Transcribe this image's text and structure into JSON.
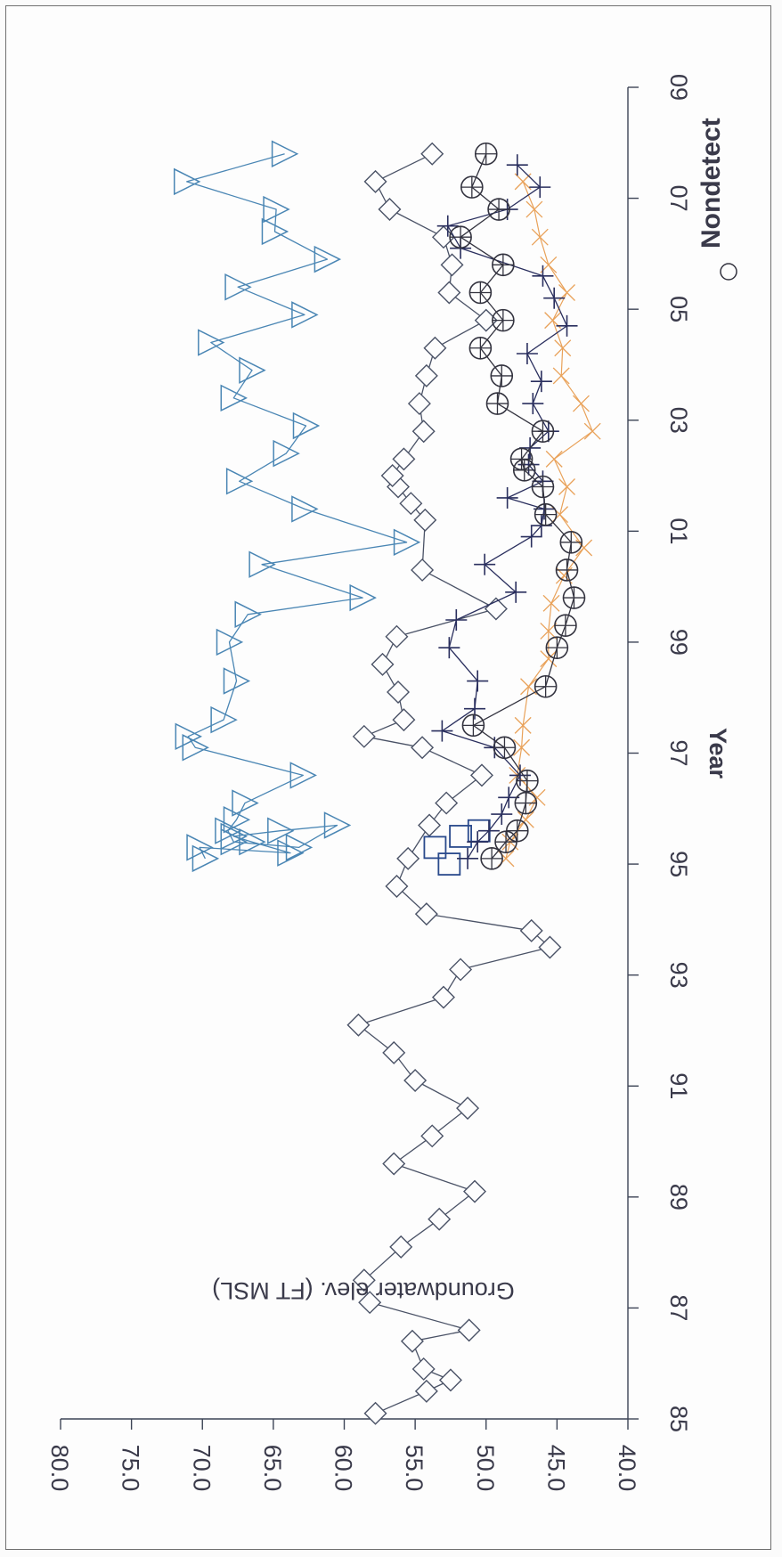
{
  "chart_data": {
    "type": "scatter",
    "orientation": "rotated-90-clockwise",
    "xlabel": "Year",
    "ylabel": "Groundwater elev. (FT MSL)",
    "xlim": [
      85,
      109
    ],
    "ylim": [
      40,
      80
    ],
    "x_tick_labels": [
      "85",
      "87",
      "89",
      "91",
      "93",
      "95",
      "97",
      "99",
      "01",
      "03",
      "05",
      "07",
      "09"
    ],
    "y_tick_labels": [
      "40.0",
      "45.0",
      "50.0",
      "55.0",
      "60.0",
      "65.0",
      "70.0",
      "75.0",
      "80.0"
    ],
    "legend": [
      {
        "label": "Nondetect",
        "marker": "circle"
      }
    ],
    "series": [
      {
        "marker": "diamond",
        "color": "#4a5266",
        "x": [
          85.1,
          85.5,
          85.7,
          85.9,
          86.4,
          86.6,
          87.1,
          87.5,
          88.1,
          88.6,
          89.1,
          89.6,
          90.1,
          90.6,
          91.1,
          91.6,
          92.1,
          92.6,
          93.1,
          93.5,
          93.8,
          94.1,
          94.6,
          95.1,
          95.7,
          96.1,
          96.6,
          97.1,
          97.3,
          97.6,
          98.1,
          98.6,
          99.1,
          99.6,
          100.3,
          101.2,
          101.5,
          101.8,
          102.0,
          102.3,
          102.8,
          103.3,
          103.8,
          104.3,
          104.8,
          105.3,
          105.8,
          106.3,
          106.8,
          107.3,
          107.8
        ],
        "y": [
          57.8,
          54.2,
          52.5,
          54.4,
          55.2,
          51.2,
          58.2,
          58.6,
          56.0,
          53.3,
          50.8,
          56.5,
          53.8,
          51.3,
          55.0,
          56.5,
          59.0,
          53.0,
          51.8,
          45.5,
          46.8,
          54.2,
          56.3,
          55.5,
          54.0,
          52.8,
          50.3,
          54.5,
          58.6,
          55.8,
          56.2,
          57.3,
          56.3,
          49.3,
          54.5,
          54.3,
          55.3,
          56.2,
          56.6,
          55.8,
          54.4,
          54.7,
          54.2,
          53.6,
          50.0,
          52.6,
          52.4,
          53.0,
          56.8,
          57.8,
          53.8
        ]
      },
      {
        "marker": "triangle",
        "color": "#4a86b4",
        "x": [
          95.1,
          95.3,
          95.2,
          95.4,
          95.5,
          95.6,
          95.7,
          95.3,
          95.4,
          95.6,
          95.8,
          96.1,
          96.6,
          97.1,
          97.3,
          97.6,
          98.3,
          99.0,
          99.5,
          99.8,
          100.4,
          100.8,
          101.4,
          101.9,
          102.4,
          102.9,
          103.4,
          103.9,
          104.4,
          104.9,
          105.4,
          105.9,
          106.4,
          106.8,
          107.3,
          107.8
        ],
        "y": [
          69.8,
          70.2,
          63.8,
          66.5,
          67.8,
          64.5,
          60.5,
          63.2,
          67.8,
          68.2,
          67.6,
          67.0,
          62.9,
          70.5,
          71.0,
          68.5,
          67.6,
          68.1,
          66.8,
          58.7,
          65.8,
          55.6,
          62.8,
          67.4,
          64.1,
          62.7,
          67.8,
          66.5,
          69.4,
          62.8,
          67.5,
          61.2,
          64.9,
          64.8,
          71.1,
          64.2
        ]
      },
      {
        "marker": "square",
        "color": "#2a4a8c",
        "x": [
          95.0,
          95.3,
          95.5,
          95.6
        ],
        "y": [
          52.6,
          53.6,
          51.8,
          50.5
        ]
      },
      {
        "marker": "plus",
        "color": "#2a2f5e",
        "x": [
          95.1,
          95.4,
          95.6,
          95.9,
          96.2,
          96.6,
          97.1,
          97.4,
          97.8,
          98.3,
          98.9,
          99.4,
          99.9,
          100.4,
          100.9,
          101.1,
          101.4,
          101.6,
          101.9,
          102.2,
          102.5,
          102.8,
          103.3,
          103.7,
          104.2,
          104.7,
          105.2,
          105.6,
          106.1,
          106.5,
          106.8,
          107.2,
          107.6
        ],
        "y": [
          51.3,
          50.6,
          49.8,
          48.9,
          48.4,
          47.6,
          49.4,
          53.1,
          50.8,
          50.6,
          52.6,
          52.1,
          47.9,
          50.1,
          46.8,
          46.1,
          45.9,
          48.5,
          46.0,
          47.0,
          46.9,
          45.6,
          46.7,
          46.1,
          47.1,
          44.3,
          45.2,
          46.0,
          51.8,
          52.7,
          48.5,
          46.2,
          47.8
        ]
      },
      {
        "marker": "x",
        "color": "#e9a25a",
        "x": [
          95.1,
          95.4,
          95.8,
          96.2,
          96.6,
          97.1,
          97.5,
          98.2,
          98.7,
          99.2,
          99.7,
          100.2,
          100.7,
          101.3,
          101.8,
          102.3,
          102.8,
          103.3,
          103.8,
          104.3,
          104.8,
          105.3,
          105.8,
          106.3,
          106.8,
          107.3
        ],
        "y": [
          48.6,
          48.3,
          47.2,
          46.4,
          47.8,
          47.5,
          47.4,
          47.0,
          45.6,
          45.6,
          45.4,
          44.5,
          43.1,
          44.8,
          44.3,
          45.2,
          42.5,
          43.3,
          44.7,
          44.6,
          45.3,
          44.3,
          45.6,
          46.2,
          46.6,
          47.4
        ]
      },
      {
        "marker": "circle",
        "color": "#33333f",
        "name": "Nondetect",
        "x": [
          95.1,
          95.4,
          95.6,
          96.1,
          96.5,
          97.1,
          97.5,
          98.2,
          98.9,
          99.3,
          99.8,
          100.3,
          100.8,
          101.3,
          101.8,
          102.1,
          102.3,
          102.8,
          103.3,
          103.8,
          104.3,
          104.8,
          105.3,
          105.8,
          106.3,
          106.8,
          107.2,
          107.8
        ],
        "y": [
          49.6,
          48.6,
          47.8,
          47.2,
          47.1,
          48.7,
          50.9,
          45.8,
          45.0,
          44.4,
          43.8,
          44.3,
          44.0,
          45.8,
          46.0,
          47.3,
          47.5,
          46.0,
          49.2,
          48.9,
          50.4,
          48.8,
          50.4,
          48.8,
          51.8,
          49.1,
          51.0,
          50.0
        ]
      }
    ]
  }
}
